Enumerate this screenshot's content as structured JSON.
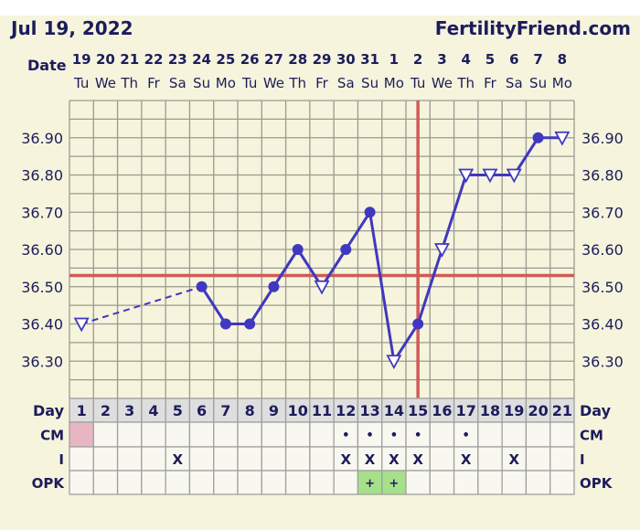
{
  "header": {
    "date": "Jul 19, 2022",
    "site": "FertilityFriend.com"
  },
  "labels": {
    "date": "Date",
    "day": "Day",
    "cm": "CM",
    "intercourse": "I",
    "opk": "OPK"
  },
  "colors": {
    "background": "#f6f4dc",
    "line": "#4038c0",
    "coverline": "#d25a55",
    "ovulation_line": "#d25a55",
    "grid": "#9a9a92",
    "menstruation": "#e8b6c2",
    "opk_positive": "#a6e08a",
    "day_row": "#dedede"
  },
  "chart_data": {
    "type": "line",
    "dates": [
      "19",
      "20",
      "21",
      "22",
      "23",
      "24",
      "25",
      "26",
      "27",
      "28",
      "29",
      "30",
      "31",
      "1",
      "2",
      "3",
      "4",
      "5",
      "6",
      "7",
      "8"
    ],
    "weekdays": [
      "Tu",
      "We",
      "Th",
      "Fr",
      "Sa",
      "Su",
      "Mo",
      "Tu",
      "We",
      "Th",
      "Fr",
      "Sa",
      "Su",
      "Mo",
      "Tu",
      "We",
      "Th",
      "Fr",
      "Sa",
      "Su",
      "Mo"
    ],
    "days": [
      1,
      2,
      3,
      4,
      5,
      6,
      7,
      8,
      9,
      10,
      11,
      12,
      13,
      14,
      15,
      16,
      17,
      18,
      19,
      20,
      21
    ],
    "ylim": [
      36.2,
      37.0
    ],
    "yticks": [
      "36.90",
      "36.80",
      "36.70",
      "36.60",
      "36.50",
      "36.40",
      "36.30"
    ],
    "grid": true,
    "temperatures": [
      {
        "day": 1,
        "temp": 36.4,
        "marker": "open-triangle"
      },
      {
        "day": 6,
        "temp": 36.5,
        "marker": "filled-circle"
      },
      {
        "day": 7,
        "temp": 36.4,
        "marker": "filled-circle"
      },
      {
        "day": 8,
        "temp": 36.4,
        "marker": "filled-circle"
      },
      {
        "day": 9,
        "temp": 36.5,
        "marker": "filled-circle"
      },
      {
        "day": 10,
        "temp": 36.6,
        "marker": "filled-circle"
      },
      {
        "day": 11,
        "temp": 36.5,
        "marker": "open-triangle"
      },
      {
        "day": 12,
        "temp": 36.6,
        "marker": "filled-circle"
      },
      {
        "day": 13,
        "temp": 36.7,
        "marker": "filled-circle"
      },
      {
        "day": 14,
        "temp": 36.3,
        "marker": "open-triangle"
      },
      {
        "day": 15,
        "temp": 36.4,
        "marker": "filled-circle"
      },
      {
        "day": 16,
        "temp": 36.6,
        "marker": "open-triangle"
      },
      {
        "day": 17,
        "temp": 36.8,
        "marker": "open-triangle"
      },
      {
        "day": 18,
        "temp": 36.8,
        "marker": "open-triangle"
      },
      {
        "day": 19,
        "temp": 36.8,
        "marker": "open-triangle"
      },
      {
        "day": 20,
        "temp": 36.9,
        "marker": "filled-circle"
      },
      {
        "day": 21,
        "temp": 36.9,
        "marker": "open-triangle"
      }
    ],
    "dashed_segments": [
      [
        1,
        6
      ]
    ],
    "coverline": 36.53,
    "ovulation_day": 15
  },
  "rows": {
    "cm": [
      "",
      "",
      "",
      "",
      "",
      "",
      "",
      "",
      "",
      "",
      "",
      "•",
      "•",
      "•",
      "•",
      "",
      "•",
      "",
      "",
      "",
      ""
    ],
    "cm_highlight_days": [
      1
    ],
    "intercourse": [
      "",
      "",
      "",
      "",
      "X",
      "",
      "",
      "",
      "",
      "",
      "",
      "X",
      "X",
      "X",
      "X",
      "",
      "X",
      "",
      "X",
      "",
      ""
    ],
    "opk": [
      "",
      "",
      "",
      "",
      "",
      "",
      "",
      "",
      "",
      "",
      "",
      "",
      "+",
      "+",
      "",
      "",
      "",
      "",
      "",
      "",
      ""
    ],
    "opk_positive_days": [
      13,
      14
    ]
  }
}
